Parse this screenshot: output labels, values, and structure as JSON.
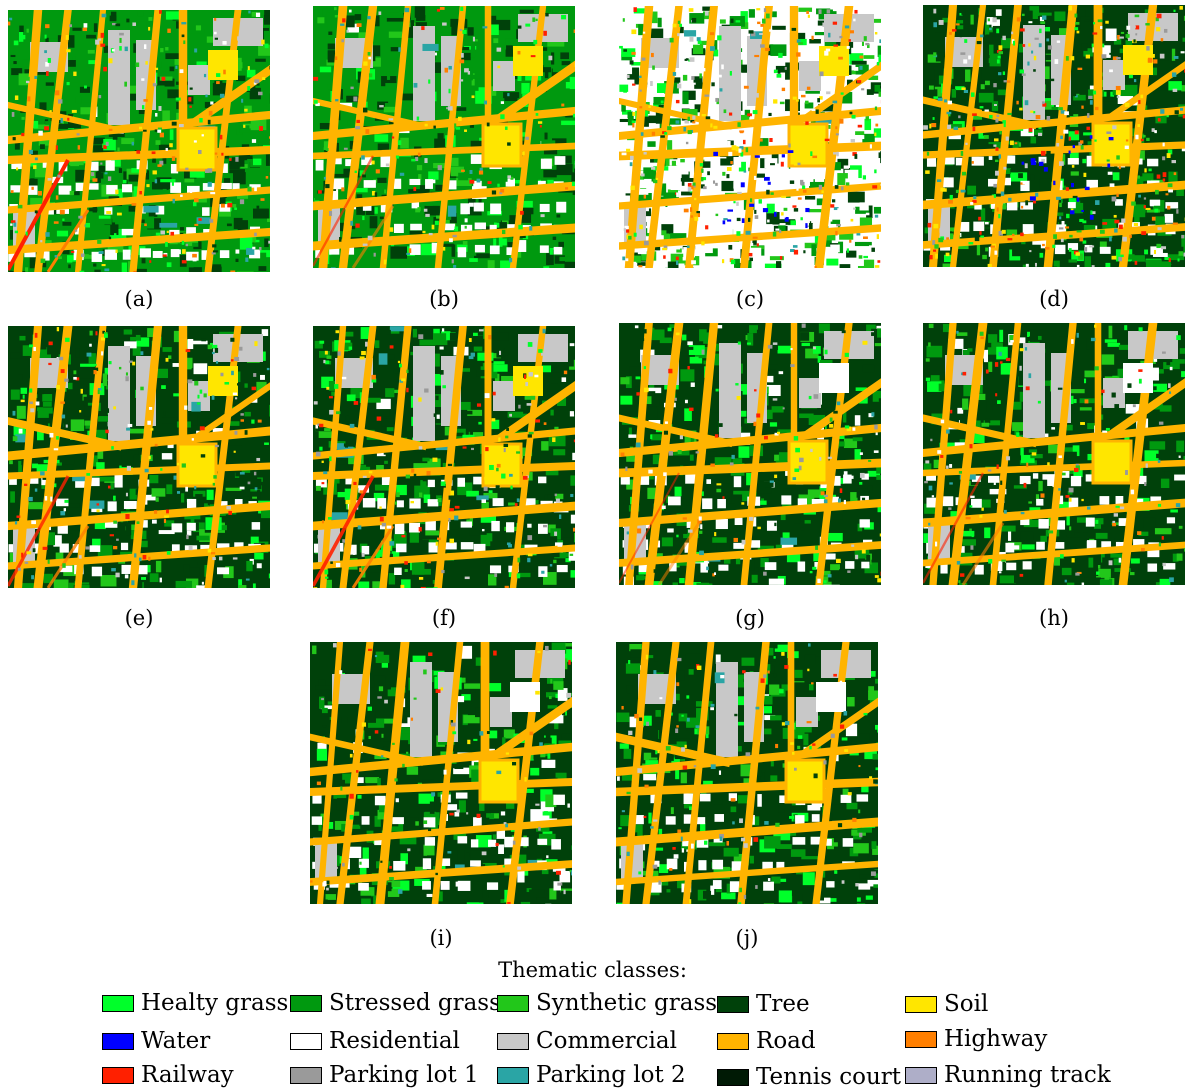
{
  "panels": [
    {
      "id": "a",
      "caption": "(a)"
    },
    {
      "id": "b",
      "caption": "(b)"
    },
    {
      "id": "c",
      "caption": "(c)"
    },
    {
      "id": "d",
      "caption": "(d)"
    },
    {
      "id": "e",
      "caption": "(e)"
    },
    {
      "id": "f",
      "caption": "(f)"
    },
    {
      "id": "g",
      "caption": "(g)"
    },
    {
      "id": "h",
      "caption": "(h)"
    },
    {
      "id": "i",
      "caption": "(i)"
    },
    {
      "id": "j",
      "caption": "(j)"
    }
  ],
  "legend": {
    "title": "Thematic classes:",
    "classes": [
      {
        "label": "Healty grass",
        "color": "#00ff2a"
      },
      {
        "label": "Stressed grass",
        "color": "#00990f"
      },
      {
        "label": "Synthetic grass",
        "color": "#22c71a"
      },
      {
        "label": "Tree",
        "color": "#00410a"
      },
      {
        "label": "Soil",
        "color": "#ffe600"
      },
      {
        "label": "Water",
        "color": "#0000ff"
      },
      {
        "label": "Residential",
        "color": "#ffffff"
      },
      {
        "label": "Commercial",
        "color": "#c8c8c8"
      },
      {
        "label": "Road",
        "color": "#ffb400"
      },
      {
        "label": "Highway",
        "color": "#ff7f00"
      },
      {
        "label": "Railway",
        "color": "#ff2000"
      },
      {
        "label": "Parking lot 1",
        "color": "#9a9a9a"
      },
      {
        "label": "Parking lot 2",
        "color": "#2aa5a5"
      },
      {
        "label": "Tennis court",
        "color": "#001a05"
      },
      {
        "label": "Running track",
        "color": "#aeaec8"
      }
    ]
  }
}
